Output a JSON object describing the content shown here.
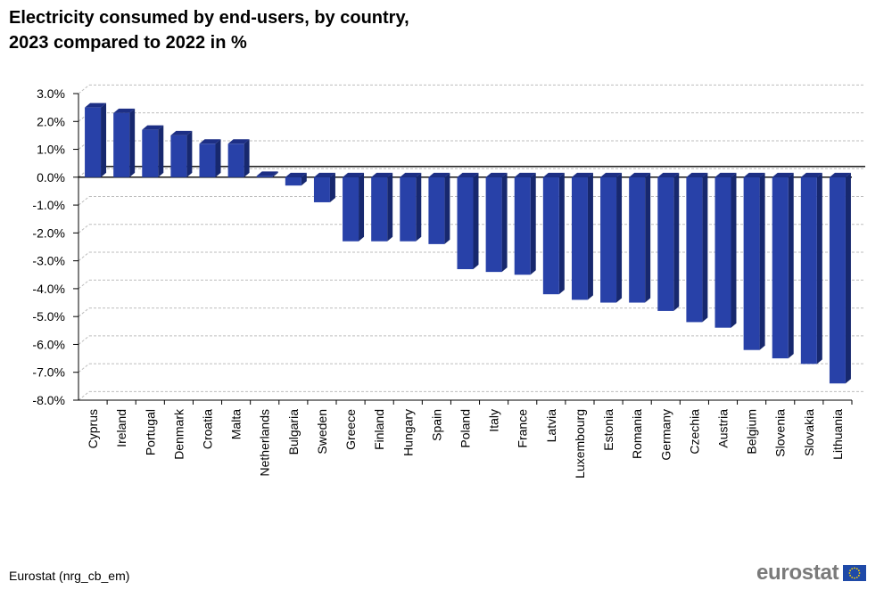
{
  "title_line1": "Electricity consumed by end-users, by country,",
  "title_line2": "2023 compared to 2022 in %",
  "source": "Eurostat (nrg_cb_em)",
  "logo_text": "eurostat",
  "colors": {
    "bar_front": "#2841a8",
    "bar_side": "#17286e",
    "bar_top": "#1d2f85",
    "grid": "#bdbdbd",
    "logo_text": "#7a7a7a",
    "flag_blue": "#1f4aa8",
    "flag_stars": "#ffd400"
  },
  "chart_data": {
    "type": "bar",
    "title": "Electricity consumed by end-users, by country, 2023 compared to 2022 in %",
    "categories": [
      "Cyprus",
      "Ireland",
      "Portugal",
      "Denmark",
      "Croatia",
      "Malta",
      "Netherlands",
      "Bulgaria",
      "Sweden",
      "Greece",
      "Finland",
      "Hungary",
      "Spain",
      "Poland",
      "Italy",
      "France",
      "Latvia",
      "Luxembourg",
      "Estonia",
      "Romania",
      "Germany",
      "Czechia",
      "Austria",
      "Belgium",
      "Slovenia",
      "Slovakia",
      "Lithuania"
    ],
    "values": [
      2.5,
      2.3,
      1.7,
      1.5,
      1.2,
      1.2,
      0.0,
      -0.3,
      -0.9,
      -2.3,
      -2.3,
      -2.3,
      -2.4,
      -3.3,
      -3.4,
      -3.5,
      -4.2,
      -4.4,
      -4.5,
      -4.5,
      -4.8,
      -5.2,
      -5.4,
      -6.2,
      -6.5,
      -6.7,
      -7.4
    ],
    "ylim": [
      -8,
      3
    ],
    "yticks": [
      3,
      2,
      1,
      0,
      -1,
      -2,
      -3,
      -4,
      -5,
      -6,
      -7,
      -8
    ],
    "ytick_labels": [
      "3.0%",
      "2.0%",
      "1.0%",
      "0.0%",
      "-1.0%",
      "-2.0%",
      "-3.0%",
      "-4.0%",
      "-5.0%",
      "-6.0%",
      "-7.0%",
      "-8.0%"
    ],
    "xlabel": "",
    "ylabel": "",
    "grid": true,
    "legend": false
  }
}
